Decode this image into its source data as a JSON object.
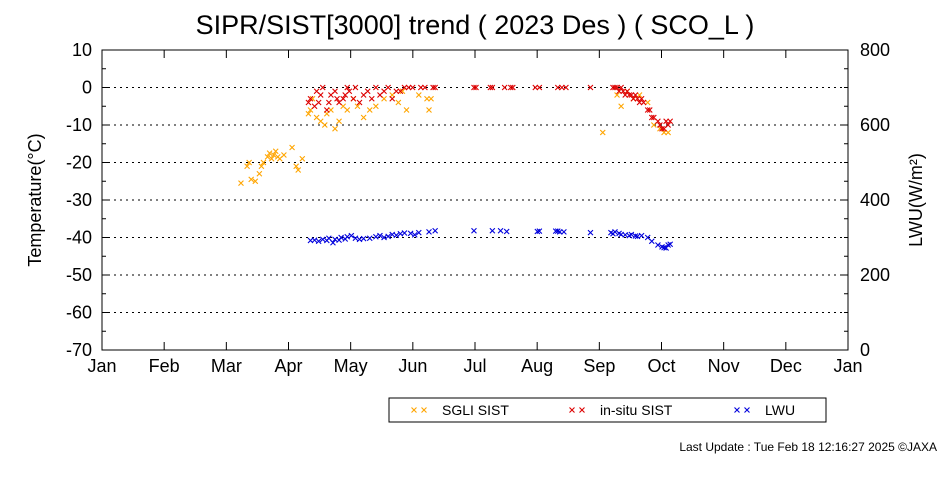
{
  "chart_data": {
    "type": "scatter",
    "title": "SIPR/SIST[3000] trend ( 2023 Des ) ( SCO_L )",
    "ylabel": "Temperature(°C)",
    "y2label": "LWU(W/m²)",
    "ylim": [
      -70,
      10
    ],
    "y2lim": [
      0,
      800
    ],
    "y_ticks": [
      10,
      0,
      -10,
      -20,
      -30,
      -40,
      -50,
      -60,
      -70
    ],
    "y2_ticks": [
      800,
      600,
      400,
      200,
      0
    ],
    "x_ticks": [
      "Jan",
      "Feb",
      "Mar",
      "Apr",
      "May",
      "Jun",
      "Jul",
      "Aug",
      "Sep",
      "Oct",
      "Nov",
      "Dec",
      "Jan"
    ],
    "grid": "horizontal dotted",
    "legend_position": "bottom-right",
    "series": [
      {
        "name": "SGLI SIST",
        "color": "#ffa500",
        "axis": "left",
        "x": [
          "2023-03-10",
          "2023-03-13",
          "2023-03-14",
          "2023-03-15",
          "2023-03-17",
          "2023-03-19",
          "2023-03-20",
          "2023-03-21",
          "2023-03-23",
          "2023-03-24",
          "2023-03-25",
          "2023-03-26",
          "2023-03-27",
          "2023-03-28",
          "2023-03-29",
          "2023-03-31",
          "2023-04-04",
          "2023-04-06",
          "2023-04-07",
          "2023-04-09",
          "2023-04-12",
          "2023-04-13",
          "2023-04-14",
          "2023-04-16",
          "2023-04-18",
          "2023-04-20",
          "2023-04-21",
          "2023-04-23",
          "2023-04-25",
          "2023-04-27",
          "2023-04-29",
          "2023-05-01",
          "2023-05-04",
          "2023-05-06",
          "2023-05-09",
          "2023-05-12",
          "2023-05-15",
          "2023-05-19",
          "2023-05-23",
          "2023-05-26",
          "2023-05-28",
          "2023-05-30",
          "2023-06-05",
          "2023-06-09",
          "2023-06-10",
          "2023-06-11",
          "2023-09-03",
          "2023-09-10",
          "2023-09-12",
          "2023-09-15",
          "2023-09-18",
          "2023-09-21",
          "2023-09-25",
          "2023-09-28",
          "2023-10-01",
          "2023-10-03",
          "2023-10-05"
        ],
        "y": [
          -25.5,
          -21,
          -20,
          -24.5,
          -25,
          -23,
          -21,
          -20,
          -18.5,
          -17.5,
          -19,
          -18,
          -17,
          -18.5,
          -19,
          -18,
          -16,
          -21,
          -22,
          -19,
          -7,
          -6,
          -3,
          -8,
          -9,
          -10,
          -7,
          -6,
          -11,
          -9,
          -5,
          -6,
          -3,
          -5,
          -8,
          -6,
          -5,
          -3,
          -2,
          -4,
          -1,
          -6,
          -2,
          -3,
          -6,
          -3,
          -12,
          -2,
          -5,
          -1,
          -3,
          -2,
          -4,
          -10,
          -11,
          -12,
          -12
        ]
      },
      {
        "name": "in-situ SIST",
        "color": "#dd0000",
        "axis": "left",
        "x": [
          "2023-04-12",
          "2023-04-13",
          "2023-04-15",
          "2023-04-16",
          "2023-04-17",
          "2023-04-18",
          "2023-04-19",
          "2023-04-21",
          "2023-04-22",
          "2023-04-23",
          "2023-04-25",
          "2023-04-26",
          "2023-04-27",
          "2023-04-29",
          "2023-04-30",
          "2023-05-01",
          "2023-05-02",
          "2023-05-04",
          "2023-05-05",
          "2023-05-07",
          "2023-05-09",
          "2023-05-11",
          "2023-05-13",
          "2023-05-15",
          "2023-05-17",
          "2023-05-19",
          "2023-05-21",
          "2023-05-23",
          "2023-05-25",
          "2023-05-27",
          "2023-05-29",
          "2023-05-31",
          "2023-06-02",
          "2023-06-06",
          "2023-06-08",
          "2023-06-12",
          "2023-06-13",
          "2023-07-02",
          "2023-07-03",
          "2023-07-10",
          "2023-07-11",
          "2023-07-17",
          "2023-07-20",
          "2023-07-21",
          "2023-08-01",
          "2023-08-03",
          "2023-08-12",
          "2023-08-14",
          "2023-08-16",
          "2023-08-28",
          "2023-09-08",
          "2023-09-09",
          "2023-09-10",
          "2023-09-11",
          "2023-09-12",
          "2023-09-13",
          "2023-09-14",
          "2023-09-15",
          "2023-09-16",
          "2023-09-17",
          "2023-09-18",
          "2023-09-19",
          "2023-09-20",
          "2023-09-21",
          "2023-09-22",
          "2023-09-23",
          "2023-09-25",
          "2023-09-26",
          "2023-09-27",
          "2023-09-28",
          "2023-09-30",
          "2023-10-01",
          "2023-10-02",
          "2023-10-03",
          "2023-10-04",
          "2023-10-05",
          "2023-10-06"
        ],
        "y": [
          -4,
          -3,
          -5,
          -1,
          -4,
          -2,
          0,
          -6,
          -4,
          -2,
          -1,
          -3,
          -4,
          -3,
          -2,
          0,
          -1,
          -3,
          0,
          -4,
          -2,
          -1,
          -3,
          0,
          -2,
          -1,
          0,
          -3,
          -1,
          -1,
          0,
          0,
          0,
          0,
          0,
          0,
          0,
          0,
          0,
          0,
          0,
          0,
          0,
          0,
          0,
          0,
          0,
          0,
          0,
          0,
          0,
          0,
          0,
          -1,
          0,
          -1,
          -2,
          -1,
          -2,
          -2,
          -3,
          -2,
          -3,
          -4,
          -3,
          -4,
          -6,
          -6,
          -8,
          -8,
          -9,
          -10,
          -11,
          -11,
          -9,
          -10,
          -9
        ]
      },
      {
        "name": "LWU",
        "color": "#0000dd",
        "axis": "right",
        "x": [
          "2023-04-13",
          "2023-04-15",
          "2023-04-17",
          "2023-04-19",
          "2023-04-21",
          "2023-04-22",
          "2023-04-24",
          "2023-04-25",
          "2023-04-27",
          "2023-04-28",
          "2023-04-30",
          "2023-05-01",
          "2023-05-03",
          "2023-05-05",
          "2023-05-07",
          "2023-05-09",
          "2023-05-12",
          "2023-05-15",
          "2023-05-17",
          "2023-05-19",
          "2023-05-21",
          "2023-05-23",
          "2023-05-25",
          "2023-05-27",
          "2023-05-29",
          "2023-06-01",
          "2023-06-03",
          "2023-06-05",
          "2023-06-10",
          "2023-06-13",
          "2023-07-02",
          "2023-07-11",
          "2023-07-15",
          "2023-07-18",
          "2023-08-02",
          "2023-08-03",
          "2023-08-11",
          "2023-08-12",
          "2023-08-13",
          "2023-08-15",
          "2023-08-28",
          "2023-09-07",
          "2023-09-08",
          "2023-09-09",
          "2023-09-11",
          "2023-09-12",
          "2023-09-14",
          "2023-09-16",
          "2023-09-17",
          "2023-09-19",
          "2023-09-20",
          "2023-09-22",
          "2023-09-25",
          "2023-09-27",
          "2023-09-30",
          "2023-10-02",
          "2023-10-03",
          "2023-10-04",
          "2023-10-05",
          "2023-10-06"
        ],
        "y": [
          292,
          293,
          290,
          295,
          292,
          298,
          286,
          295,
          293,
          300,
          296,
          302,
          305,
          298,
          295,
          297,
          298,
          302,
          305,
          300,
          303,
          308,
          306,
          310,
          312,
          311,
          307,
          313,
          315,
          318,
          318,
          318,
          318,
          316,
          316,
          317,
          317,
          317,
          315,
          315,
          313,
          313,
          310,
          315,
          311,
          308,
          307,
          305,
          308,
          304,
          303,
          305,
          300,
          290,
          280,
          275,
          273,
          272,
          280,
          282
        ]
      }
    ]
  },
  "footer": {
    "last_update": "Last Update : Tue Feb 18 12:16:27 2025  ©JAXA"
  }
}
